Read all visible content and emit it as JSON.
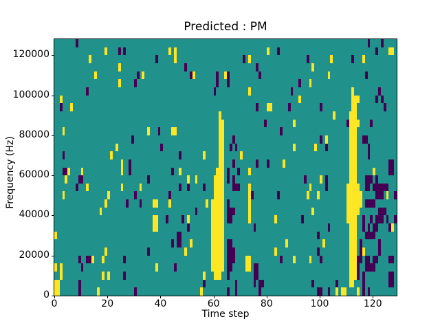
{
  "figure": {
    "title": "Predicted : PM",
    "xlabel": "Time step",
    "ylabel": "Frequency (Hz)"
  },
  "chart_data": {
    "type": "heatmap",
    "title": "Predicted : PM",
    "xlabel": "Time step",
    "ylabel": "Frequency (Hz)",
    "colormap": "viridis",
    "grid_cols": 129,
    "grid_rows": 32,
    "xlim": [
      0,
      129
    ],
    "ylim": [
      0,
      128000
    ],
    "x_ticks": [
      {
        "value": 0,
        "label": "0"
      },
      {
        "value": 20,
        "label": "20"
      },
      {
        "value": 40,
        "label": "40"
      },
      {
        "value": 60,
        "label": "60"
      },
      {
        "value": 80,
        "label": "80"
      },
      {
        "value": 100,
        "label": "100"
      },
      {
        "value": 120,
        "label": "120"
      }
    ],
    "y_ticks": [
      {
        "value": 0,
        "label": "0"
      },
      {
        "value": 20000,
        "label": "20000"
      },
      {
        "value": 40000,
        "label": "40000"
      },
      {
        "value": 60000,
        "label": "60000"
      },
      {
        "value": 80000,
        "label": "80000"
      },
      {
        "value": 100000,
        "label": "100000"
      },
      {
        "value": 120000,
        "label": "120000"
      }
    ],
    "legend": null,
    "grid": false,
    "background_value": 1,
    "value_colors": {
      "0": "#440154",
      "1": "#21918c",
      "2": "#fde725"
    },
    "cells_format": "[col(from left), row(from bottom), vertical_run_length, value(0=purple,2=yellow); background=1=teal]",
    "cells": [
      [
        8,
        31,
        1,
        0
      ],
      [
        118,
        31,
        1,
        0
      ],
      [
        123,
        31,
        1,
        0
      ],
      [
        19,
        30,
        1,
        2
      ],
      [
        24,
        30,
        1,
        0
      ],
      [
        26,
        30,
        1,
        0
      ],
      [
        43,
        30,
        1,
        2
      ],
      [
        80,
        30,
        1,
        2
      ],
      [
        84,
        30,
        1,
        0
      ],
      [
        121,
        30,
        1,
        0
      ],
      [
        126,
        30,
        1,
        2
      ],
      [
        127,
        30,
        1,
        2
      ],
      [
        13,
        29,
        1,
        2
      ],
      [
        38,
        29,
        1,
        0
      ],
      [
        45,
        29,
        2,
        2
      ],
      [
        71,
        29,
        1,
        0
      ],
      [
        73,
        29,
        1,
        2
      ],
      [
        95,
        29,
        1,
        0
      ],
      [
        104,
        29,
        1,
        2
      ],
      [
        112,
        29,
        1,
        0
      ],
      [
        116,
        29,
        1,
        2
      ],
      [
        49,
        28,
        1,
        0
      ],
      [
        24,
        28,
        1,
        2
      ],
      [
        76,
        28,
        1,
        0
      ],
      [
        97,
        28,
        1,
        2
      ],
      [
        15,
        27,
        1,
        2
      ],
      [
        31,
        27,
        1,
        0
      ],
      [
        33,
        27,
        1,
        2
      ],
      [
        51,
        27,
        1,
        0
      ],
      [
        52,
        27,
        1,
        2
      ],
      [
        64,
        27,
        1,
        2
      ],
      [
        77,
        27,
        1,
        0
      ],
      [
        103,
        27,
        1,
        2
      ],
      [
        117,
        27,
        1,
        0
      ],
      [
        61,
        26,
        2,
        0
      ],
      [
        24,
        26,
        1,
        2
      ],
      [
        30,
        26,
        1,
        0
      ],
      [
        65,
        26,
        2,
        0
      ],
      [
        92,
        26,
        1,
        0
      ],
      [
        96,
        26,
        1,
        2
      ],
      [
        12,
        25,
        1,
        0
      ],
      [
        60,
        25,
        1,
        0
      ],
      [
        73,
        25,
        1,
        2
      ],
      [
        112,
        25,
        1,
        2
      ],
      [
        89,
        25,
        1,
        0
      ],
      [
        122,
        25,
        1,
        0
      ],
      [
        2,
        24,
        1,
        2
      ],
      [
        92,
        24,
        1,
        2
      ],
      [
        121,
        24,
        1,
        0
      ],
      [
        114,
        24,
        1,
        2
      ],
      [
        123,
        24,
        1,
        0
      ],
      [
        2,
        23,
        1,
        0
      ],
      [
        6,
        23,
        1,
        2
      ],
      [
        76,
        23,
        1,
        0
      ],
      [
        80,
        23,
        1,
        2
      ],
      [
        81,
        23,
        1,
        2
      ],
      [
        88,
        23,
        1,
        0
      ],
      [
        100,
        23,
        1,
        0
      ],
      [
        124,
        23,
        1,
        0
      ],
      [
        105,
        22,
        1,
        2
      ],
      [
        114,
        21,
        1,
        2
      ],
      [
        119,
        21,
        1,
        0
      ],
      [
        79,
        21,
        1,
        0
      ],
      [
        90,
        21,
        1,
        2
      ],
      [
        110,
        21,
        1,
        0
      ],
      [
        3,
        20,
        1,
        2
      ],
      [
        35,
        20,
        1,
        2
      ],
      [
        39,
        20,
        1,
        0
      ],
      [
        44,
        20,
        1,
        2
      ],
      [
        45,
        20,
        1,
        2
      ],
      [
        85,
        20,
        1,
        0
      ],
      [
        29,
        19,
        1,
        0
      ],
      [
        116,
        19,
        1,
        0
      ],
      [
        117,
        19,
        1,
        0
      ],
      [
        102,
        19,
        1,
        2
      ],
      [
        100,
        19,
        1,
        0
      ],
      [
        67,
        19,
        1,
        0
      ],
      [
        40,
        18,
        1,
        0
      ],
      [
        23,
        18,
        1,
        2
      ],
      [
        98,
        18,
        1,
        2
      ],
      [
        102,
        18,
        1,
        0
      ],
      [
        90,
        18,
        1,
        2
      ],
      [
        66,
        18,
        1,
        0
      ],
      [
        68,
        18,
        1,
        0
      ],
      [
        21,
        17,
        1,
        2
      ],
      [
        3,
        17,
        1,
        0
      ],
      [
        47,
        17,
        1,
        0
      ],
      [
        56,
        17,
        1,
        2
      ],
      [
        118,
        17,
        2,
        0
      ],
      [
        70,
        17,
        1,
        2
      ],
      [
        25,
        15,
        2,
        2
      ],
      [
        28,
        15,
        2,
        0
      ],
      [
        3,
        15,
        1,
        0
      ],
      [
        4,
        15,
        1,
        0
      ],
      [
        5,
        15,
        1,
        2
      ],
      [
        44,
        15,
        1,
        0
      ],
      [
        47,
        15,
        1,
        2
      ],
      [
        67,
        16,
        1,
        0
      ],
      [
        76,
        16,
        1,
        0
      ],
      [
        80,
        16,
        1,
        0
      ],
      [
        86,
        16,
        1,
        2
      ],
      [
        69,
        15,
        1,
        0
      ],
      [
        126,
        15,
        2,
        0
      ],
      [
        127,
        15,
        2,
        0
      ],
      [
        73,
        15,
        1,
        2
      ],
      [
        120,
        15,
        1,
        2
      ],
      [
        10,
        15,
        1,
        2
      ],
      [
        59,
        3,
        9,
        2
      ],
      [
        60,
        2,
        13,
        2
      ],
      [
        61,
        2,
        14,
        2
      ],
      [
        62,
        2,
        21,
        2
      ],
      [
        63,
        3,
        19,
        2
      ],
      [
        110,
        9,
        5,
        2
      ],
      [
        111,
        1,
        22,
        2
      ],
      [
        112,
        1,
        24,
        2
      ],
      [
        113,
        2,
        23,
        2
      ],
      [
        114,
        10,
        4,
        2
      ],
      [
        115,
        11,
        2,
        2
      ],
      [
        4,
        14,
        1,
        2
      ],
      [
        9,
        14,
        1,
        0
      ],
      [
        10,
        14,
        1,
        0
      ],
      [
        35,
        14,
        1,
        0
      ],
      [
        50,
        14,
        1,
        2
      ],
      [
        53,
        14,
        1,
        2
      ],
      [
        65,
        14,
        2,
        0
      ],
      [
        94,
        14,
        1,
        0
      ],
      [
        100,
        14,
        1,
        2
      ],
      [
        119,
        14,
        1,
        0
      ],
      [
        121,
        14,
        1,
        0
      ],
      [
        12,
        13,
        1,
        2
      ],
      [
        8,
        13,
        1,
        0
      ],
      [
        25,
        13,
        1,
        2
      ],
      [
        32,
        13,
        1,
        2
      ],
      [
        47,
        13,
        1,
        0
      ],
      [
        50,
        13,
        1,
        0
      ],
      [
        56,
        13,
        1,
        0
      ],
      [
        67,
        13,
        2,
        0
      ],
      [
        68,
        13,
        1,
        0
      ],
      [
        69,
        13,
        1,
        0
      ],
      [
        96,
        13,
        1,
        2
      ],
      [
        102,
        13,
        2,
        0
      ],
      [
        117,
        13,
        2,
        0
      ],
      [
        118,
        13,
        2,
        0
      ],
      [
        120,
        13,
        1,
        0
      ],
      [
        124,
        13,
        1,
        0
      ],
      [
        125,
        13,
        1,
        0
      ],
      [
        3,
        12,
        1,
        2
      ],
      [
        20,
        12,
        1,
        2
      ],
      [
        30,
        12,
        1,
        0
      ],
      [
        43,
        12,
        1,
        0
      ],
      [
        74,
        12,
        1,
        0
      ],
      [
        95,
        12,
        1,
        2
      ],
      [
        99,
        12,
        1,
        2
      ],
      [
        84,
        12,
        1,
        0
      ],
      [
        122,
        12,
        2,
        0
      ],
      [
        123,
        12,
        2,
        0
      ],
      [
        125,
        12,
        1,
        2
      ],
      [
        121,
        12,
        2,
        0
      ],
      [
        128,
        12,
        1,
        0
      ],
      [
        19,
        11,
        1,
        2
      ],
      [
        37,
        11,
        1,
        2
      ],
      [
        38,
        11,
        1,
        2
      ],
      [
        27,
        11,
        1,
        0
      ],
      [
        32,
        11,
        1,
        0
      ],
      [
        43,
        11,
        1,
        2
      ],
      [
        57,
        11,
        1,
        2
      ],
      [
        117,
        11,
        1,
        0
      ],
      [
        118,
        11,
        1,
        0
      ],
      [
        119,
        11,
        1,
        0
      ],
      [
        120,
        11,
        1,
        0
      ],
      [
        17,
        10,
        1,
        2
      ],
      [
        53,
        10,
        1,
        0
      ],
      [
        67,
        10,
        1,
        0
      ],
      [
        97,
        10,
        1,
        2
      ],
      [
        124,
        10,
        1,
        0
      ],
      [
        50,
        9,
        1,
        2
      ],
      [
        48,
        9,
        1,
        0
      ],
      [
        42,
        9,
        1,
        0
      ],
      [
        65,
        9,
        3,
        0
      ],
      [
        66,
        9,
        2,
        0
      ],
      [
        73,
        9,
        5,
        2
      ],
      [
        93,
        9,
        1,
        0
      ],
      [
        83,
        9,
        1,
        2
      ],
      [
        122,
        9,
        2,
        0
      ],
      [
        123,
        9,
        2,
        0
      ],
      [
        125,
        9,
        1,
        0
      ],
      [
        119,
        9,
        1,
        0
      ],
      [
        128,
        9,
        1,
        0
      ],
      [
        50,
        8,
        1,
        0
      ],
      [
        37,
        8,
        2,
        2
      ],
      [
        38,
        8,
        2,
        2
      ],
      [
        75,
        8,
        1,
        0
      ],
      [
        103,
        8,
        1,
        0
      ],
      [
        126,
        8,
        1,
        0
      ],
      [
        116,
        8,
        2,
        0
      ],
      [
        121,
        8,
        2,
        0
      ],
      [
        127,
        8,
        1,
        2
      ],
      [
        0,
        7,
        1,
        2
      ],
      [
        99,
        7,
        1,
        0
      ],
      [
        117,
        7,
        1,
        0
      ],
      [
        118,
        7,
        2,
        0
      ],
      [
        119,
        7,
        1,
        0
      ],
      [
        120,
        7,
        2,
        0
      ],
      [
        51,
        6,
        1,
        2
      ],
      [
        46,
        6,
        2,
        0
      ],
      [
        47,
        6,
        2,
        0
      ],
      [
        44,
        6,
        1,
        0
      ],
      [
        87,
        6,
        1,
        2
      ],
      [
        101,
        6,
        1,
        2
      ],
      [
        49,
        5,
        1,
        2
      ],
      [
        35,
        5,
        1,
        0
      ],
      [
        19,
        5,
        1,
        2
      ],
      [
        83,
        5,
        1,
        2
      ],
      [
        99,
        5,
        1,
        0
      ],
      [
        116,
        5,
        1,
        2
      ],
      [
        122,
        5,
        2,
        0
      ],
      [
        115,
        4,
        3,
        0
      ],
      [
        18,
        4,
        1,
        2
      ],
      [
        26,
        4,
        1,
        0
      ],
      [
        9,
        4,
        1,
        0
      ],
      [
        12,
        4,
        1,
        0
      ],
      [
        13,
        4,
        1,
        0
      ],
      [
        14,
        4,
        1,
        2
      ],
      [
        96,
        4,
        1,
        2
      ],
      [
        100,
        4,
        1,
        0
      ],
      [
        90,
        4,
        1,
        2
      ],
      [
        85,
        4,
        1,
        0
      ],
      [
        121,
        4,
        1,
        0
      ],
      [
        127,
        4,
        1,
        0
      ],
      [
        126,
        4,
        1,
        0
      ],
      [
        67,
        4,
        2,
        0
      ],
      [
        0,
        3,
        1,
        2
      ],
      [
        10,
        3,
        1,
        0
      ],
      [
        38,
        3,
        1,
        2
      ],
      [
        45,
        3,
        1,
        0
      ],
      [
        117,
        3,
        2,
        0
      ],
      [
        118,
        3,
        2,
        0
      ],
      [
        119,
        3,
        1,
        0
      ],
      [
        120,
        3,
        2,
        0
      ],
      [
        114,
        2,
        3,
        0
      ],
      [
        72,
        3,
        2,
        2
      ],
      [
        73,
        3,
        2,
        2
      ],
      [
        66,
        3,
        4,
        0
      ],
      [
        26,
        2,
        1,
        0
      ],
      [
        18,
        2,
        1,
        2
      ],
      [
        20,
        2,
        1,
        2
      ],
      [
        56,
        2,
        1,
        2
      ],
      [
        2,
        2,
        2,
        2
      ],
      [
        75,
        1,
        3,
        0
      ],
      [
        76,
        2,
        2,
        0
      ],
      [
        65,
        2,
        5,
        0
      ],
      [
        56,
        1,
        1,
        0
      ],
      [
        97,
        1,
        1,
        0
      ],
      [
        106,
        1,
        1,
        0
      ],
      [
        126,
        1,
        2,
        0
      ],
      [
        127,
        1,
        2,
        0
      ],
      [
        116,
        0,
        3,
        0
      ],
      [
        78,
        1,
        1,
        0
      ],
      [
        0,
        0,
        2,
        2
      ],
      [
        1,
        0,
        2,
        2
      ],
      [
        16,
        0,
        1,
        2
      ],
      [
        9,
        0,
        2,
        0
      ],
      [
        55,
        0,
        1,
        2
      ],
      [
        30,
        0,
        1,
        0
      ],
      [
        68,
        0,
        2,
        0
      ],
      [
        65,
        0,
        1,
        0
      ],
      [
        77,
        0,
        2,
        0
      ],
      [
        114,
        0,
        1,
        2
      ],
      [
        108,
        0,
        1,
        2
      ],
      [
        109,
        0,
        1,
        2
      ],
      [
        106,
        0,
        1,
        2
      ],
      [
        99,
        0,
        1,
        0
      ],
      [
        100,
        0,
        1,
        0
      ],
      [
        103,
        0,
        1,
        0
      ],
      [
        118,
        0,
        1,
        0
      ]
    ]
  }
}
